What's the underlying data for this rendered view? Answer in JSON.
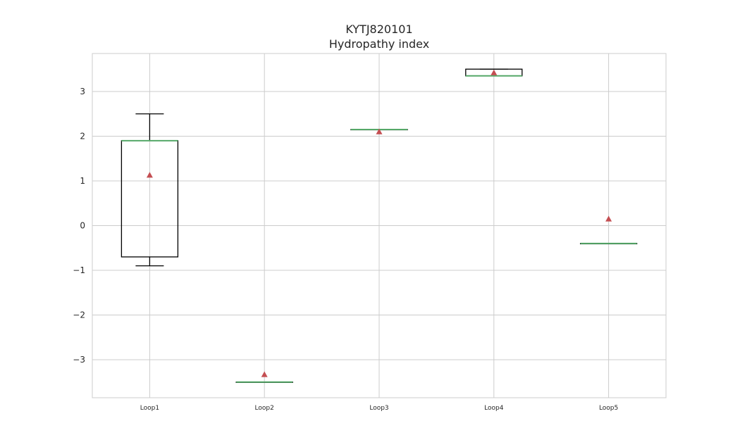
{
  "chart_data": {
    "type": "box",
    "title": [
      "KYTJ820101",
      "Hydropathy index"
    ],
    "xlabel": "",
    "ylabel": "",
    "categories": [
      "Loop1",
      "Loop2",
      "Loop3",
      "Loop4",
      "Loop5"
    ],
    "boxes": [
      {
        "name": "Loop1",
        "whisker_low": -0.9,
        "q1": -0.7,
        "median": 1.9,
        "q3": 1.9,
        "whisker_high": 2.5,
        "mean": 1.13
      },
      {
        "name": "Loop2",
        "whisker_low": -3.5,
        "q1": -3.5,
        "median": -3.5,
        "q3": -3.5,
        "whisker_high": -3.5,
        "mean": -3.33
      },
      {
        "name": "Loop3",
        "whisker_low": 2.15,
        "q1": 2.15,
        "median": 2.15,
        "q3": 2.15,
        "whisker_high": 2.15,
        "mean": 2.1
      },
      {
        "name": "Loop4",
        "whisker_low": 3.35,
        "q1": 3.35,
        "median": 3.35,
        "q3": 3.5,
        "whisker_high": 3.5,
        "mean": 3.42
      },
      {
        "name": "Loop5",
        "whisker_low": -0.4,
        "q1": -0.4,
        "median": -0.4,
        "q3": -0.4,
        "whisker_high": -0.4,
        "mean": 0.15
      }
    ],
    "yticks": [
      -3,
      -2,
      -1,
      0,
      1,
      2,
      3
    ],
    "yticklabels": [
      "−3",
      "−2",
      "−1",
      "0",
      "1",
      "2",
      "3"
    ],
    "ylim": [
      -3.85,
      3.85
    ],
    "grid": true,
    "colors": {
      "box": "#000000",
      "median": "#55a868",
      "mean": "#c44e52",
      "grid": "#cccccc",
      "frame": "#cccccc"
    }
  }
}
